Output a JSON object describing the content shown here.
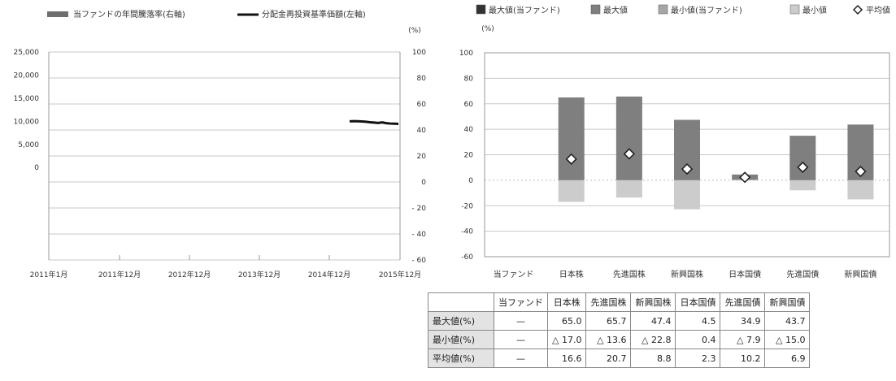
{
  "colors": {
    "fund_max": "#333333",
    "max": "#7f7f7f",
    "fund_min": "#a6a6a6",
    "min": "#cccccc",
    "nav_line": "#111111",
    "return_bar": "#6f6f6f",
    "grid": "#c8c8c8"
  },
  "chart_data": [
    {
      "type": "line",
      "legend": {
        "bar_label": "当ファンドの年間騰落率(右軸)",
        "line_label": "分配金再投資基準価額(左軸)"
      },
      "right_unit": "(%)",
      "x_tick_labels": [
        "2011年1月",
        "2011年12月",
        "2012年12月",
        "2013年12月",
        "2014年12月",
        "2015年12月"
      ],
      "left_axis": {
        "ylim": [
          -20000,
          25000
        ],
        "ticks": [
          "25,000",
          "20,000",
          "15,000",
          "10,000",
          "5,000",
          "0"
        ]
      },
      "right_axis": {
        "ylim": [
          -60,
          100
        ],
        "ticks": [
          "100",
          "80",
          "60",
          "40",
          "20",
          "0",
          "- 20",
          "- 40",
          "- 60"
        ]
      },
      "series": [
        {
          "name": "分配金再投資基準価額(左軸)",
          "x": [
            "2014-12",
            "2015-01",
            "2015-02",
            "2015-03",
            "2015-04",
            "2015-05",
            "2015-06",
            "2015-07",
            "2015-08",
            "2015-09",
            "2015-10",
            "2015-11",
            "2015-12"
          ],
          "values": [
            10000,
            10030,
            10010,
            9980,
            9900,
            9800,
            9720,
            9650,
            9760,
            9600,
            9520,
            9480,
            9450
          ]
        }
      ]
    },
    {
      "type": "bar",
      "legend": [
        {
          "key": "fund_max",
          "label": "最大値(当ファンド)"
        },
        {
          "key": "max",
          "label": "最大値"
        },
        {
          "key": "fund_min",
          "label": "最小値(当ファンド)"
        },
        {
          "key": "min",
          "label": "最小値"
        },
        {
          "key": "avg",
          "label": "平均値"
        }
      ],
      "unit": "(%)",
      "ylim": [
        -60,
        100
      ],
      "y_ticks": [
        "100",
        "80",
        "60",
        "40",
        "20",
        "0",
        "-20",
        "-40",
        "-60"
      ],
      "categories": [
        "当ファンド",
        "日本株",
        "先進国株",
        "新興国株",
        "日本国債",
        "先進国債",
        "新興国債"
      ],
      "max": [
        null,
        65.0,
        65.7,
        47.4,
        4.5,
        34.9,
        43.7
      ],
      "min": [
        null,
        -17.0,
        -13.6,
        -22.8,
        0.4,
        -7.9,
        -15.0
      ],
      "avg": [
        null,
        16.6,
        20.7,
        8.8,
        2.3,
        10.2,
        6.9
      ]
    }
  ],
  "table": {
    "headers": [
      "当ファンド",
      "日本株",
      "先進国株",
      "新興国株",
      "日本国債",
      "先進国債",
      "新興国債"
    ],
    "rows": [
      {
        "label": "最大値(%)",
        "cells": [
          "—",
          "65.0",
          "65.7",
          "47.4",
          "4.5",
          "34.9",
          "43.7"
        ]
      },
      {
        "label": "最小値(%)",
        "cells": [
          "—",
          "△ 17.0",
          "△ 13.6",
          "△ 22.8",
          "0.4",
          "△ 7.9",
          "△ 15.0"
        ]
      },
      {
        "label": "平均値(%)",
        "cells": [
          "—",
          "16.6",
          "20.7",
          "8.8",
          "2.3",
          "10.2",
          "6.9"
        ]
      }
    ]
  }
}
